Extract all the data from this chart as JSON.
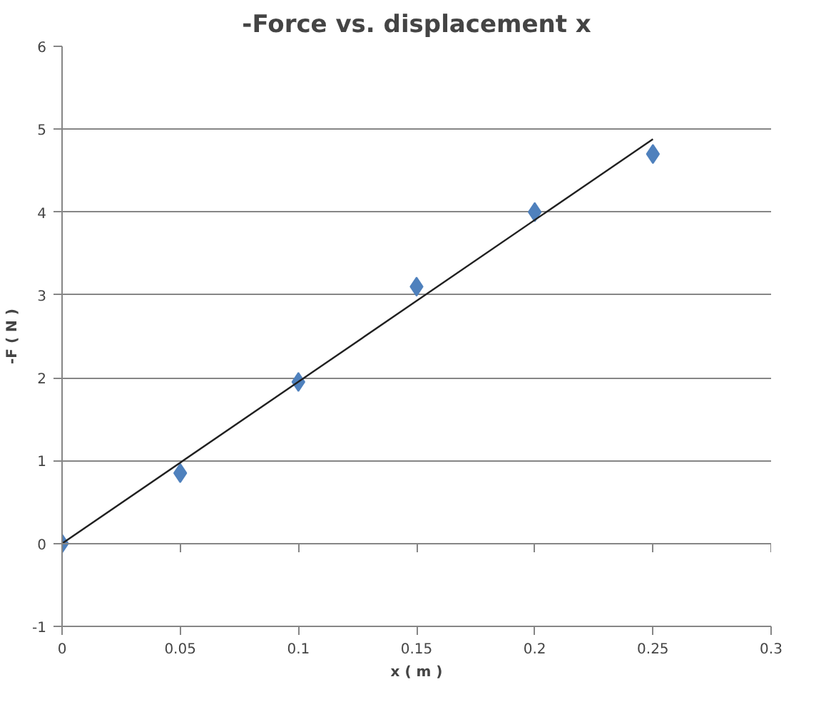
{
  "chart_data": {
    "type": "scatter",
    "title": "-Force vs. displacement x",
    "xlabel": "x ( m )",
    "ylabel": "-F ( N )",
    "x": [
      0,
      0.05,
      0.1,
      0.15,
      0.2,
      0.25
    ],
    "series": [
      {
        "color": "#4f81bd",
        "marker": "diamond",
        "values": [
          0,
          0.85,
          1.95,
          3.1,
          4.0,
          4.7
        ]
      },
      {
        "type": "line",
        "color": "#202020",
        "x": [
          0,
          0.25
        ],
        "values": [
          0,
          4.88
        ],
        "line_style": "solid"
      }
    ],
    "xlim": [
      0,
      0.3
    ],
    "xticks": [
      0,
      0.05,
      0.1,
      0.15,
      0.2,
      0.25,
      0.3
    ],
    "ylim": [
      -1,
      6
    ],
    "yticks": [
      -1,
      0,
      1,
      2,
      3,
      4,
      5,
      6
    ],
    "grid": "y"
  }
}
